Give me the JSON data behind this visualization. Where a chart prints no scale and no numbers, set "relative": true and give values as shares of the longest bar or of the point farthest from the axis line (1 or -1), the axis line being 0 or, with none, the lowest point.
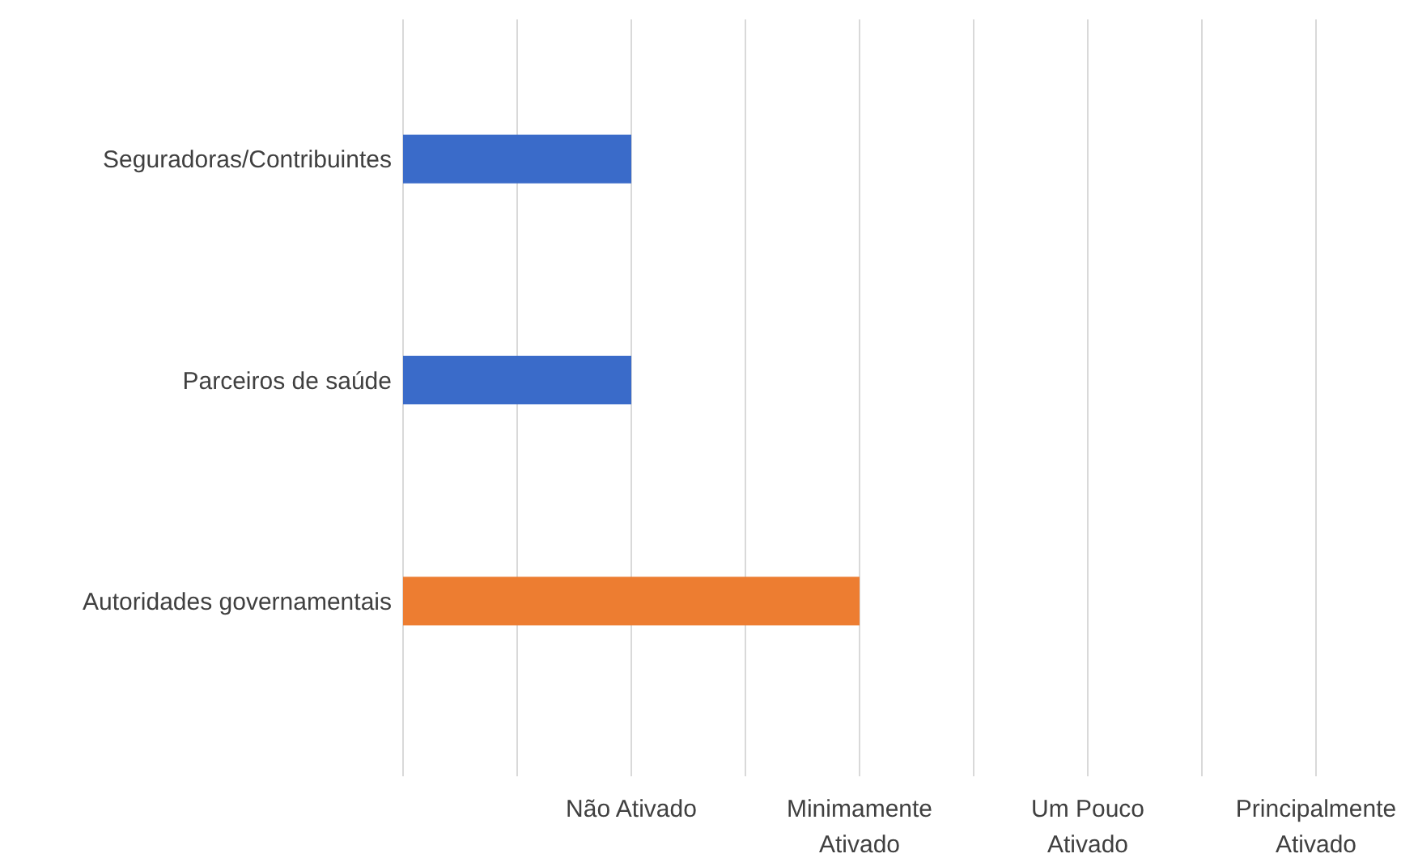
{
  "chart_data": {
    "type": "bar",
    "orientation": "horizontal",
    "relative": true,
    "categories": [
      "Seguradoras/Contribuintes",
      "Parceiros de saúde",
      "Autoridades governamentais"
    ],
    "values": [
      0.5,
      0.5,
      1
    ],
    "colors": [
      "#3a6bc9",
      "#3a6bc9",
      "#ed7d31"
    ],
    "annotations": [
      "Não Ativado",
      "Minimamente Ativado",
      "Um Pouco Ativado",
      "Principalmente Ativado"
    ],
    "grid": "x"
  }
}
